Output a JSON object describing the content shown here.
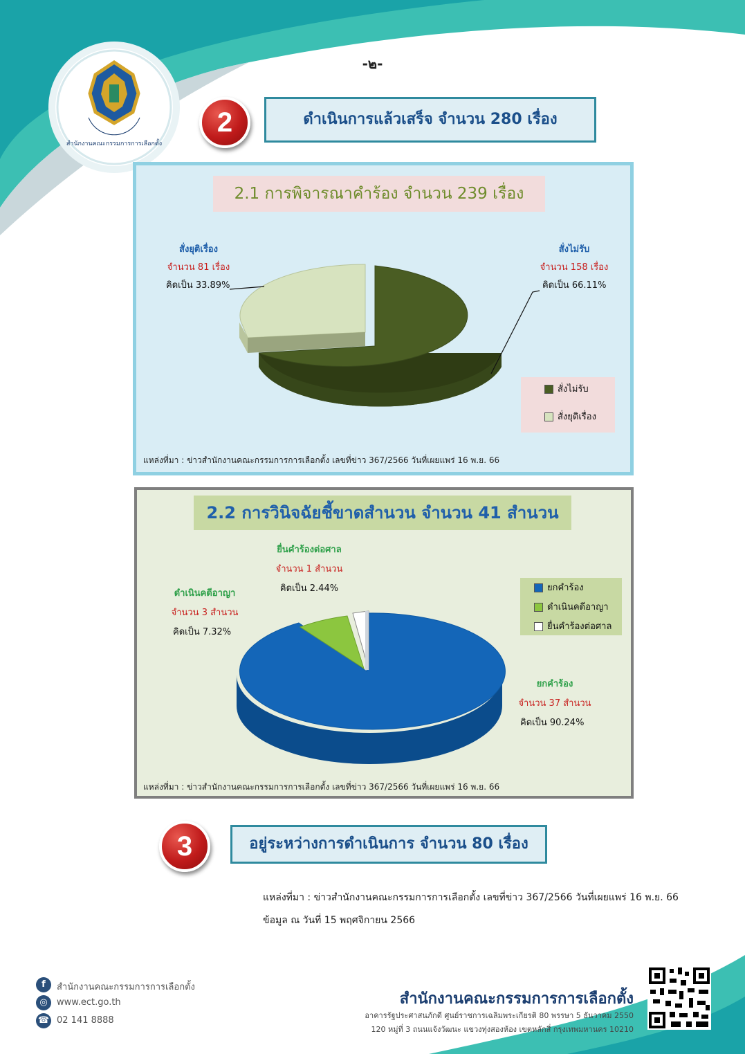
{
  "page_number": "-๒-",
  "logo_text": "สำนักงานคณะกรรมการการเลือกตั้ง",
  "section2": {
    "badge": "2",
    "title": "ดำเนินการแล้วเสร็จ จำนวน 280 เรื่อง"
  },
  "chart1": {
    "title": "2.1 การพิจารณาคำร้อง จำนวน 239 เรื่อง",
    "label_stop": {
      "name": "สั่งยุติเรื่อง",
      "count": "จำนวน 81 เรื่อง",
      "pct": "คิดเป็น 33.89%"
    },
    "label_reject": {
      "name": "สั่งไม่รับ",
      "count": "จำนวน 158 เรื่อง",
      "pct": "คิดเป็น 66.11%"
    },
    "legend": [
      "สั่งไม่รับ",
      "สั่งยุติเรื่อง"
    ],
    "source": "แหล่งที่มา : ข่าวสำนักงานคณะกรรมการการเลือกตั้ง เลขที่ข่าว 367/2566 วันที่เผยแพร่ 16 พ.ย. 66",
    "colors": {
      "reject": "#4a5d23",
      "stop": "#d7e3bf",
      "panel_bg": "#d9edf5"
    }
  },
  "chart2": {
    "title": "2.2 การวินิจฉัยชี้ขาดสำนวน จำนวน 41 สำนวน",
    "label_court": {
      "name": "ยื่นคำร้องต่อศาล",
      "count": "จำนวน 1 สำนวน",
      "pct": "คิดเป็น 2.44%"
    },
    "label_criminal": {
      "name": "ดำเนินคดีอาญา",
      "count": "จำนวน 3 สำนวน",
      "pct": "คิดเป็น 7.32%"
    },
    "label_dismiss": {
      "name": "ยกคำร้อง",
      "count": "จำนวน 37 สำนวน",
      "pct": "คิดเป็น 90.24%"
    },
    "legend": [
      "ยกคำร้อง",
      "ดำเนินคดีอาญา",
      "ยื่นคำร้องต่อศาล"
    ],
    "source": "แหล่งที่มา : ข่าวสำนักงานคณะกรรมการการเลือกตั้ง เลขที่ข่าว 367/2566 วันที่เผยแพร่ 16 พ.ย. 66",
    "colors": {
      "dismiss": "#1466b8",
      "criminal": "#8cc63f",
      "court": "#ffffff",
      "panel_bg": "#e8eedd"
    }
  },
  "section3": {
    "badge": "3",
    "title": "อยู่ระหว่างการดำเนินการ จำนวน 80 เรื่อง"
  },
  "bottom": {
    "source": "แหล่งที่มา : ข่าวสำนักงานคณะกรรมการการเลือกตั้ง เลขที่ข่าว 367/2566 วันที่เผยแพร่ 16 พ.ย. 66",
    "as_of": "ข้อมูล ณ วันที่ 15 พฤศจิกายน 2566"
  },
  "footer": {
    "facebook": "สำนักงานคณะกรรมการการเลือกตั้ง",
    "website": "www.ect.go.th",
    "phone": "02 141 8888",
    "org_name": "สำนักงานคณะกรรมการการเลือกตั้ง",
    "address1": "อาคารรัฐประศาสนภักดี ศูนย์ราชการเฉลิมพระเกียรติ 80 พรรษา 5 ธันวาคม 2550",
    "address2": "120 หมู่ที่ 3 ถนนแจ้งวัฒนะ แขวงทุ่งสองห้อง เขตหลักสี่ กรุงเทพมหานคร 10210"
  },
  "chart_data": [
    {
      "type": "pie",
      "title": "2.1 การพิจารณาคำร้อง จำนวน 239 เรื่อง",
      "categories": [
        "สั่งไม่รับ",
        "สั่งยุติเรื่อง"
      ],
      "values": [
        158,
        81
      ],
      "percentages": [
        66.11,
        33.89
      ],
      "legend_position": "bottom-right"
    },
    {
      "type": "pie",
      "title": "2.2 การวินิจฉัยชี้ขาดสำนวน จำนวน 41 สำนวน",
      "categories": [
        "ยกคำร้อง",
        "ดำเนินคดีอาญา",
        "ยื่นคำร้องต่อศาล"
      ],
      "values": [
        37,
        3,
        1
      ],
      "percentages": [
        90.24,
        7.32,
        2.44
      ],
      "legend_position": "top-right"
    }
  ]
}
